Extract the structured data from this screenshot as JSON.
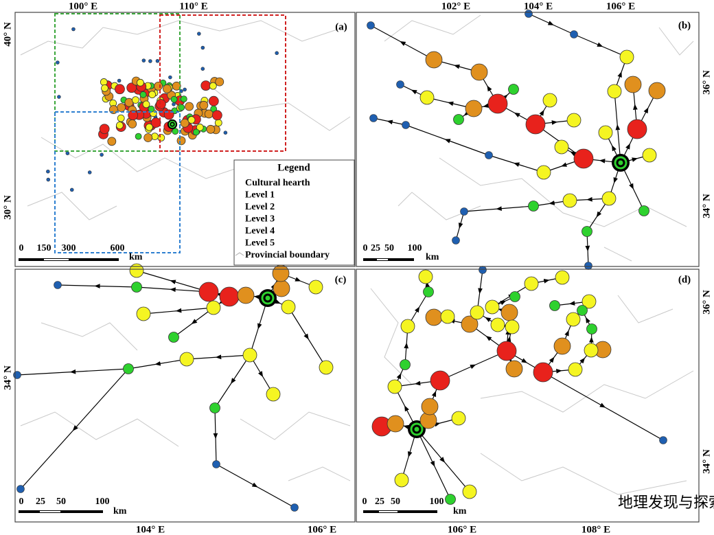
{
  "panels": [
    {
      "label": "(a)",
      "lon_labels": [
        "100° E",
        "110° E"
      ],
      "lat_labels": [
        "40° N",
        "30° N"
      ],
      "scale_labels": [
        "0",
        "150",
        "300",
        "600",
        "km"
      ]
    },
    {
      "label": "(b)",
      "lon_labels": [
        "102° E",
        "104° E",
        "106° E"
      ],
      "lat_labels": [
        "36° N",
        "34° N"
      ],
      "scale_labels": [
        "0",
        "25",
        "50",
        "100",
        "km"
      ]
    },
    {
      "label": "(c)",
      "lon_labels": [
        "104° E",
        "106° E"
      ],
      "lat_labels": [
        "34° N"
      ],
      "scale_labels": [
        "0",
        "25",
        "50",
        "100",
        "km"
      ]
    },
    {
      "label": "(d)",
      "lon_labels": [
        "106° E",
        "108° E"
      ],
      "lat_labels": [
        "36° N",
        "34° N"
      ],
      "scale_labels": [
        "0",
        "25",
        "50",
        "100",
        "km"
      ]
    }
  ],
  "legend": {
    "title": "Legend",
    "items": [
      "Cultural hearth",
      "Level 1",
      "Level 2",
      "Level 3",
      "Level 4",
      "Level 5",
      "Provincial boundary"
    ]
  },
  "watermark": "地理发现与探索"
}
